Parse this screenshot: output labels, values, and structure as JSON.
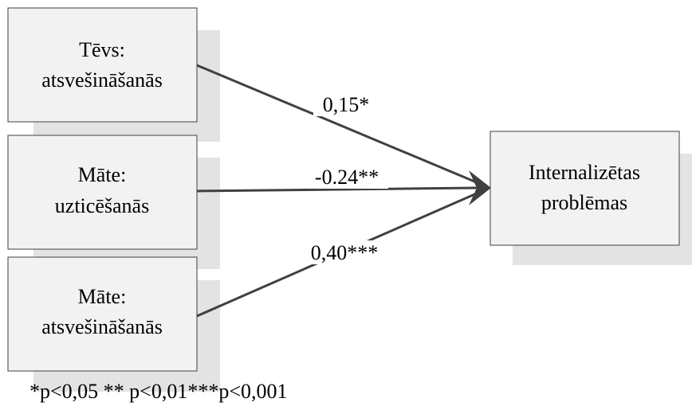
{
  "diagram": {
    "predictors": [
      {
        "line1": "Tēvs:",
        "line2": "atsvešināšanās"
      },
      {
        "line1": "Māte:",
        "line2": "uzticēšanās"
      },
      {
        "line1": "Māte:",
        "line2": "atsvešināšanās"
      }
    ],
    "outcome": {
      "line1": "Internalizētas",
      "line2": "problēmas"
    },
    "coefficients": [
      "0,15*",
      "-0.24**",
      "0,40***"
    ],
    "legend": "*p<0,05 ** p<0,01***p<0,001",
    "colors": {
      "box_fill": "#f2f2f2",
      "box_border": "#404040",
      "shadow": "#e3e3e3",
      "arrow": "#404040"
    }
  }
}
